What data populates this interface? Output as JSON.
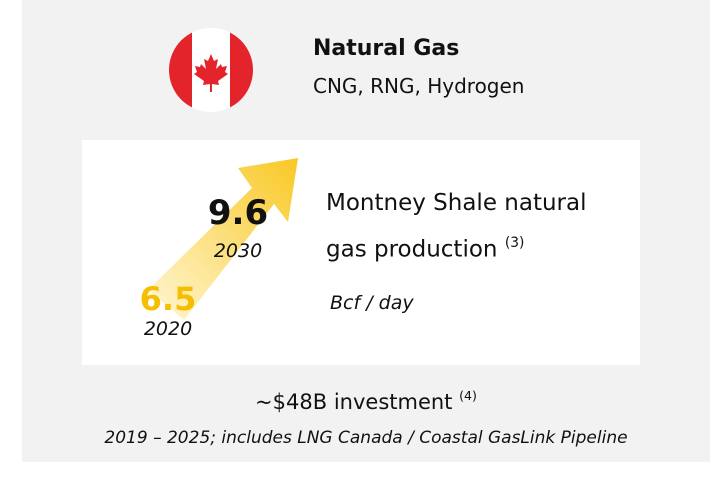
{
  "header": {
    "title": "Natural Gas",
    "subtitle": "CNG, RNG, Hydrogen"
  },
  "metric": {
    "start_value": 6.5,
    "start_year": "2020",
    "end_value": 9.6,
    "end_year": "2030",
    "description": "Montney Shale natural gas production",
    "footnote": "(3)",
    "unit": "Bcf / day"
  },
  "investment": {
    "amount": "~$48B",
    "label": "investment",
    "footnote": "(4)",
    "note": "2019 – 2025; includes LNG Canada / Coastal GasLink Pipeline"
  }
}
